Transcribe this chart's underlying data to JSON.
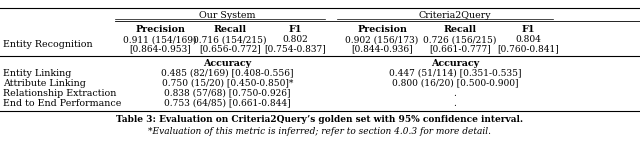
{
  "title_caption": "Table 3: Evaluation on Criteria2Query’s golden set with 95% confidence interval.",
  "subtitle_caption": "*Evaluation of this metric is inferred; refer to section 4.0.3 for more detail.",
  "entity_recognition_label": "Entity Recognition",
  "entity_recognition_row1": [
    "0.911 (154/169)",
    "0.716 (154/215)",
    "0.802",
    "0.902 (156/173)",
    "0.726 (156/215)",
    "0.804"
  ],
  "entity_recognition_row2": [
    "[0.864-0.953]",
    "[0.656-0.772]",
    "[0.754-0.837]",
    "[0.844-0.936]",
    "[0.661-0.777]",
    "[0.760-0.841]"
  ],
  "data_rows": [
    [
      "Entity Linking",
      "0.485 (82/169) [0.408-0.556]",
      "0.447 (51/114) [0.351-0.535]"
    ],
    [
      "Attribute Linking",
      "0.750 (15/20) [0.450-0.850]*",
      "0.800 (16/20) [0.500-0.900]"
    ],
    [
      "Relationship Extraction",
      "0.838 (57/68) [0.750-0.926]",
      "."
    ],
    [
      "End to End Performance",
      "0.753 (64/85) [0.661-0.844]",
      "."
    ]
  ],
  "background_color": "#ffffff"
}
